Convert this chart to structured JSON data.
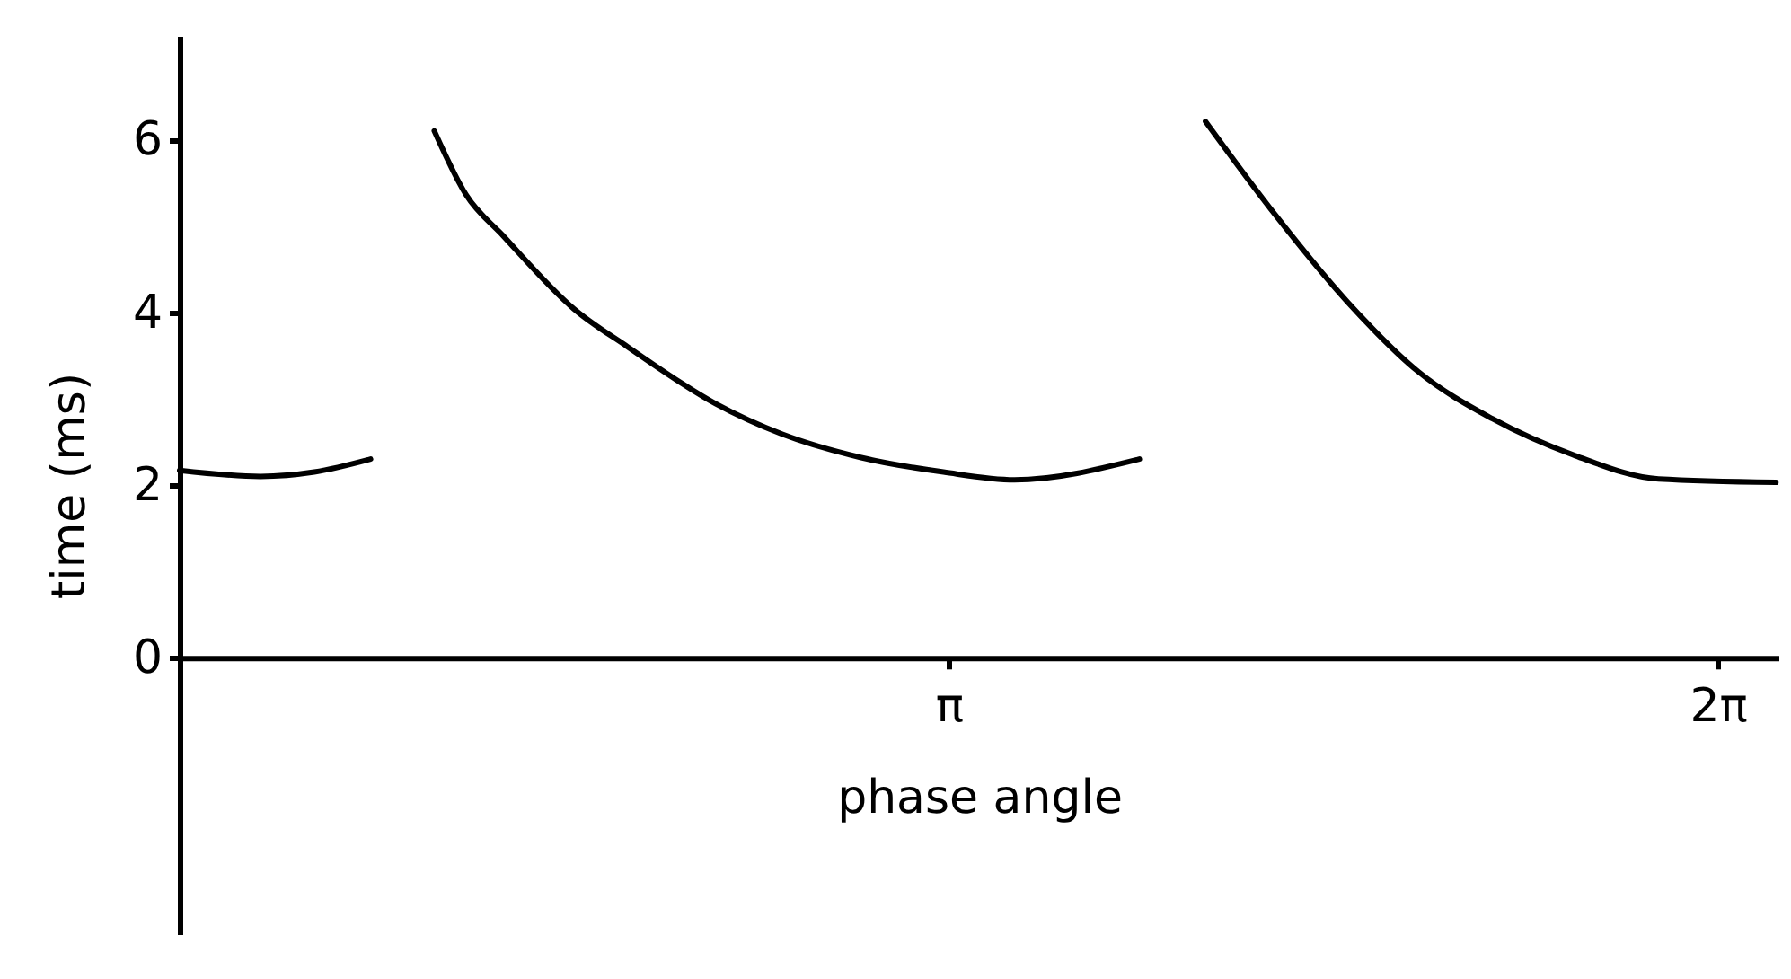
{
  "chart_data": {
    "type": "line",
    "xlabel": "phase angle",
    "ylabel": "time  (ms)",
    "xlim": [
      0,
      6.53
    ],
    "ylim": [
      -3.2,
      7.2
    ],
    "xticks": [
      {
        "value": 3.1416,
        "label": "π"
      },
      {
        "value": 6.2832,
        "label": "2π"
      }
    ],
    "yticks": [
      0,
      2,
      4,
      6
    ],
    "grid": false,
    "marker": "none",
    "line_style": "solid",
    "series": [
      {
        "color": "#000000",
        "x": [
          0,
          0.33,
          0.55,
          0.78
        ],
        "values": [
          2.17,
          2.1,
          2.15,
          2.3
        ]
      },
      {
        "color": "#000000",
        "x": [
          1.04,
          1.17,
          1.32,
          1.61,
          1.83,
          2.19,
          2.46,
          2.78,
          3.12,
          3.41,
          3.92
        ],
        "values": [
          6.1,
          5.36,
          4.89,
          4.04,
          3.6,
          2.94,
          2.59,
          2.32,
          2.15,
          2.06,
          2.3
        ]
      },
      {
        "color": "#000000",
        "x": [
          4.19,
          4.48,
          4.77,
          5.06,
          5.36,
          5.7,
          6.04,
          6.52
        ],
        "values": [
          6.21,
          5.11,
          4.12,
          3.31,
          2.77,
          2.34,
          2.07,
          2.03
        ]
      }
    ]
  }
}
